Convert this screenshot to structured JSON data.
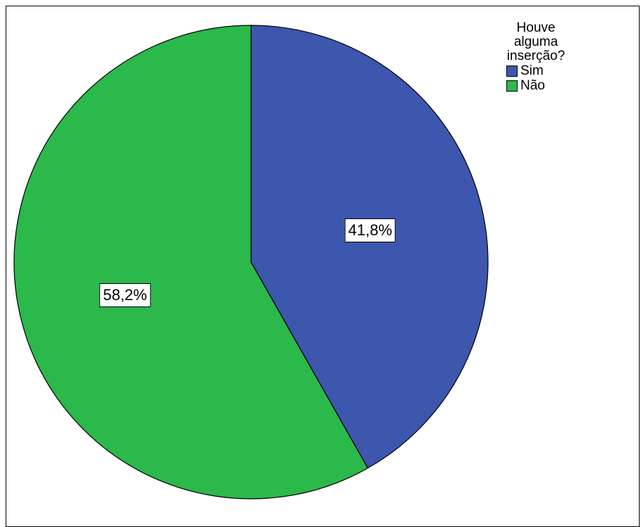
{
  "chart_data": {
    "type": "pie",
    "legend_title": "Houve alguma inserção?",
    "legend_title_lines": [
      "Houve",
      "alguma",
      "inserção?"
    ],
    "legend_position": "top-right",
    "slices": [
      {
        "label": "Sim",
        "value": 41.8,
        "display": "41,8%",
        "color": "#3d56ae"
      },
      {
        "label": "Não",
        "value": 58.2,
        "display": "58,2%",
        "color": "#2ab94a"
      }
    ]
  }
}
